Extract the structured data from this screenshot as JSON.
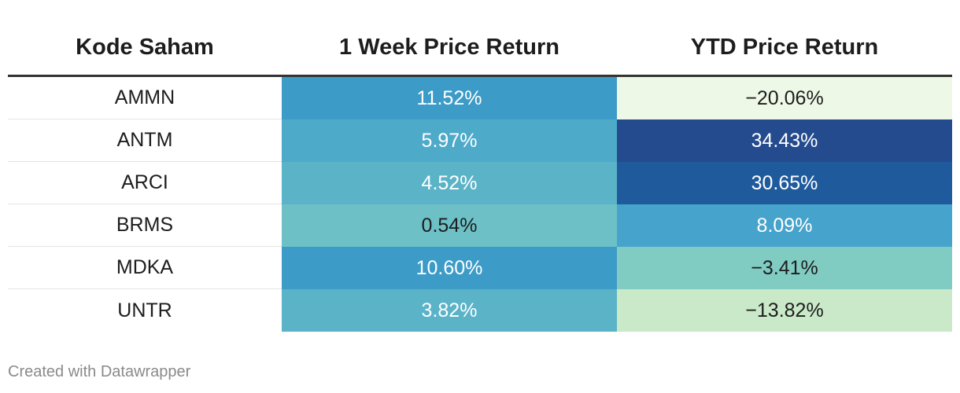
{
  "chart_data": {
    "type": "table",
    "columns": [
      "Kode Saham",
      "1 Week Price Return",
      "YTD Price Return"
    ],
    "rows": [
      {
        "code": "AMMN",
        "week": "11.52%",
        "ytd": "−20.06%",
        "week_value": 11.52,
        "ytd_value": -20.06
      },
      {
        "code": "ANTM",
        "week": "5.97%",
        "ytd": "34.43%",
        "week_value": 5.97,
        "ytd_value": 34.43
      },
      {
        "code": "ARCI",
        "week": "4.52%",
        "ytd": "30.65%",
        "week_value": 4.52,
        "ytd_value": 30.65
      },
      {
        "code": "BRMS",
        "week": "0.54%",
        "ytd": "8.09%",
        "week_value": 0.54,
        "ytd_value": 8.09
      },
      {
        "code": "MDKA",
        "week": "10.60%",
        "ytd": "−3.41%",
        "week_value": 10.6,
        "ytd_value": -3.41
      },
      {
        "code": "UNTR",
        "week": "3.82%",
        "ytd": "−13.82%",
        "week_value": 3.82,
        "ytd_value": -13.82
      }
    ],
    "cell_colors": {
      "week": [
        "#3d9bc8",
        "#4eaac9",
        "#5bb3c8",
        "#6cc0c6",
        "#3d9bc8",
        "#5bb3c8"
      ],
      "ytd": [
        "#eef8e7",
        "#254b8f",
        "#1f5a9d",
        "#46a3cb",
        "#80ccc2",
        "#c9e9c8"
      ]
    },
    "text_colors": {
      "week": [
        "#ffffff",
        "#ffffff",
        "#ffffff",
        "#1d1d1d",
        "#ffffff",
        "#ffffff"
      ],
      "ytd": [
        "#1d1d1d",
        "#ffffff",
        "#ffffff",
        "#ffffff",
        "#1d1d1d",
        "#1d1d1d"
      ]
    }
  },
  "footer": "Created with Datawrapper"
}
